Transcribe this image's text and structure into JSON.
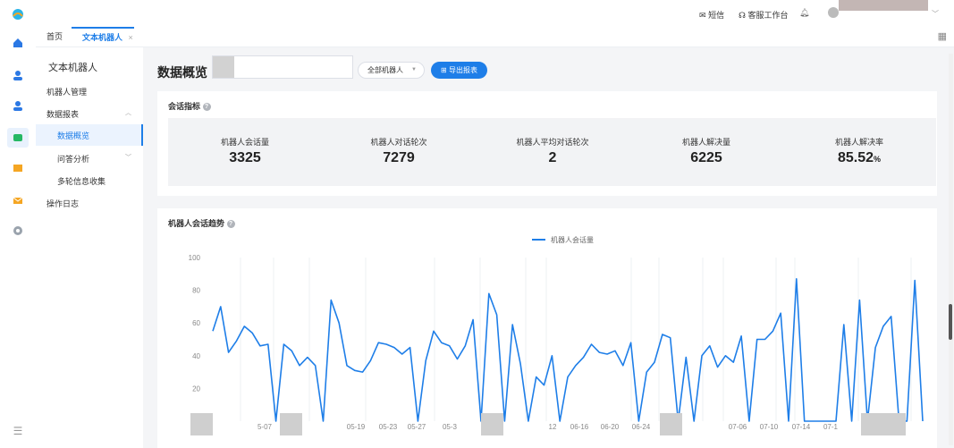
{
  "top": {
    "sms": "短信",
    "service_desk": "客服工作台"
  },
  "tabs": [
    {
      "label": "首页"
    },
    {
      "label": "文本机器人"
    }
  ],
  "menu": {
    "title": "文本机器人",
    "items": [
      {
        "label": "机器人管理"
      },
      {
        "label": "数据报表"
      },
      {
        "label": "数据概览"
      },
      {
        "label": "问答分析"
      },
      {
        "label": "多轮信息收集"
      },
      {
        "label": "操作日志"
      }
    ]
  },
  "header": {
    "title": "数据概览",
    "robot_select": "全部机器人",
    "export_label": "导出报表"
  },
  "metrics": {
    "title": "会话指标",
    "items": [
      {
        "label": "机器人会话量",
        "value": "3325",
        "unit": ""
      },
      {
        "label": "机器人对话轮次",
        "value": "7279",
        "unit": ""
      },
      {
        "label": "机器人平均对话轮次",
        "value": "2",
        "unit": ""
      },
      {
        "label": "机器人解决量",
        "value": "6225",
        "unit": ""
      },
      {
        "label": "机器人解决率",
        "value": "85.52",
        "unit": "%"
      }
    ]
  },
  "trend": {
    "title": "机器人会话趋势",
    "legend": "机器人会话量",
    "color": "#1e7ee8",
    "y_ticks": [
      "100",
      "80",
      "60",
      "40",
      "20"
    ],
    "x_ticks": [
      "5-07",
      "05-19",
      "05-23",
      "05-27",
      "05-3",
      "12",
      "06-16",
      "06-20",
      "06-24",
      "07-06",
      "07-10",
      "07-14",
      "07-1"
    ]
  },
  "chart_data": {
    "type": "line",
    "title": "机器人会话趋势",
    "ylim": [
      0,
      100
    ],
    "series": [
      {
        "name": "机器人会话量",
        "values": [
          55,
          70,
          42,
          49,
          58,
          54,
          46,
          47,
          0,
          47,
          43,
          34,
          39,
          34,
          0,
          74,
          60,
          34,
          31,
          30,
          37,
          48,
          47,
          45,
          41,
          45,
          0,
          37,
          55,
          48,
          46,
          38,
          46,
          62,
          0,
          78,
          65,
          0,
          59,
          35,
          0,
          27,
          22,
          40,
          0,
          27,
          34,
          39,
          47,
          42,
          41,
          43,
          34,
          48,
          0,
          30,
          36,
          53,
          51,
          0,
          39,
          0,
          40,
          46,
          33,
          40,
          36,
          52,
          0,
          50,
          50,
          55,
          66,
          0,
          87,
          0,
          0,
          0,
          0,
          0,
          59,
          0,
          74,
          0,
          45,
          58,
          64,
          0,
          0,
          86,
          0
        ]
      }
    ],
    "x_ticks": [
      "5-07",
      "05-19",
      "05-23",
      "05-27",
      "05-3",
      "12",
      "06-16",
      "06-20",
      "06-24",
      "07-06",
      "07-10",
      "07-14",
      "07-1"
    ]
  }
}
